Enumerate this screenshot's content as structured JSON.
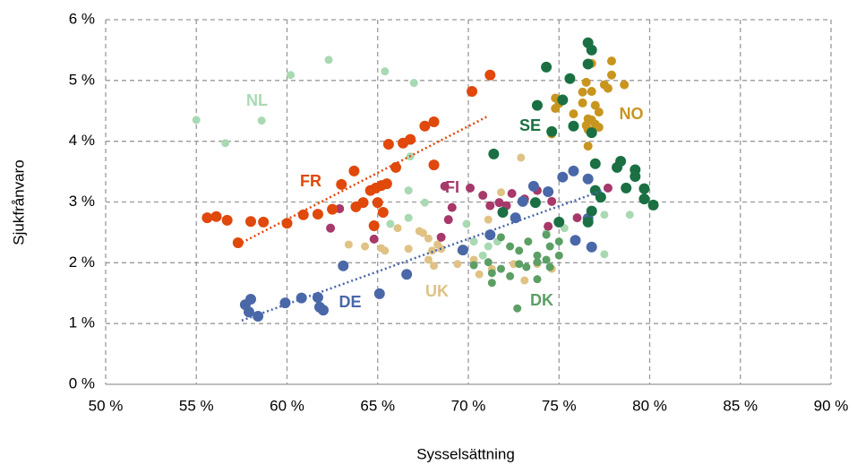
{
  "chart_data": {
    "type": "scatter",
    "x_label": "Sysselsättning",
    "y_label": "Sjukfrånvaro",
    "xlim": [
      50,
      90
    ],
    "ylim": [
      0,
      6
    ],
    "grid": true,
    "xticks": [
      {
        "value": 50,
        "label": "50 %"
      },
      {
        "value": 55,
        "label": "55 %"
      },
      {
        "value": 60,
        "label": "60 %"
      },
      {
        "value": 65,
        "label": "65 %"
      },
      {
        "value": 70,
        "label": "70 %"
      },
      {
        "value": 75,
        "label": "75 %"
      },
      {
        "value": 80,
        "label": "80 %"
      },
      {
        "value": 85,
        "label": "85 %"
      },
      {
        "value": 90,
        "label": "90 %"
      }
    ],
    "yticks": [
      {
        "value": 0,
        "label": "0 %"
      },
      {
        "value": 1,
        "label": "1 %"
      },
      {
        "value": 2,
        "label": "2 %"
      },
      {
        "value": 3,
        "label": "3 %"
      },
      {
        "value": 4,
        "label": "4 %"
      },
      {
        "value": 5,
        "label": "5 %"
      },
      {
        "value": 6,
        "label": "6 %"
      }
    ],
    "series": [
      {
        "name": "NL",
        "color": "#a9d9b2",
        "x": [
          55.0,
          56.6,
          58.6,
          60.2,
          62.3,
          65.4,
          67.0,
          66.8,
          66.7,
          66.7,
          65.7,
          67.6,
          69.9,
          70.3,
          71.1,
          70.8,
          71.6,
          74.3,
          75.3,
          77.5,
          78.9,
          77.5
        ],
        "values": [
          4.35,
          3.97,
          4.34,
          5.09,
          5.34,
          5.15,
          4.96,
          3.75,
          3.19,
          2.74,
          2.64,
          2.99,
          2.64,
          2.35,
          2.27,
          2.12,
          2.35,
          2.49,
          2.57,
          2.79,
          2.79,
          2.14
        ]
      },
      {
        "name": "UK",
        "color": "#dfc284",
        "x": [
          63.4,
          64.3,
          65.2,
          65.4,
          66.1,
          66.7,
          67.3,
          67.5,
          67.8,
          68.0,
          68.3,
          68.5,
          68.1,
          69.4,
          69.6,
          70.3,
          70.6,
          71.3,
          71.8,
          72.9,
          72.5,
          73.1,
          73.8,
          74.6,
          71.1,
          67.8
        ],
        "values": [
          2.3,
          2.27,
          2.24,
          2.2,
          2.57,
          2.23,
          2.52,
          2.49,
          2.05,
          2.2,
          2.3,
          2.23,
          1.95,
          1.98,
          2.2,
          2.05,
          1.81,
          1.9,
          3.16,
          3.73,
          1.98,
          1.71,
          1.98,
          1.9,
          2.71,
          2.4
        ]
      },
      {
        "name": "DK",
        "color": "#5c9f64",
        "x": [
          71.8,
          72.3,
          72.8,
          73.3,
          73.8,
          74.3,
          74.5,
          75.0,
          71.1,
          71.3,
          71.3,
          72.7,
          72.3,
          73.2,
          73.8,
          74.5,
          75.0,
          73.8,
          71.8,
          72.8,
          74.3,
          70.3
        ],
        "values": [
          2.42,
          2.27,
          2.2,
          2.35,
          2.12,
          2.05,
          2.27,
          2.35,
          2.01,
          1.83,
          1.67,
          1.25,
          1.78,
          1.93,
          1.73,
          1.93,
          2.12,
          2.01,
          1.9,
          1.98,
          2.46,
          1.96
        ]
      },
      {
        "name": "FI",
        "color": "#a6386a",
        "x": [
          62.4,
          62.9,
          63.8,
          64.8,
          68.7,
          68.9,
          69.1,
          70.1,
          70.8,
          71.2,
          71.7,
          72.1,
          72.4,
          73.1,
          73.8,
          74.4,
          74.6,
          76.0,
          77.7,
          68.5
        ],
        "values": [
          2.57,
          2.89,
          2.91,
          2.39,
          3.26,
          2.71,
          2.91,
          3.23,
          3.11,
          2.94,
          2.99,
          2.94,
          3.14,
          3.05,
          3.19,
          2.6,
          3.01,
          2.74,
          3.23,
          2.42
        ]
      },
      {
        "name": "NO",
        "color": "#c8951f",
        "x": [
          77.9,
          77.9,
          76.8,
          76.5,
          76.3,
          76.3,
          76.8,
          77.0,
          77.2,
          76.6,
          76.8,
          77.0,
          77.2,
          76.5,
          77.5,
          77.7,
          78.6,
          74.8,
          75.0,
          74.6,
          75.8,
          76.6,
          74.8,
          76.6
        ],
        "values": [
          5.32,
          5.09,
          5.28,
          4.97,
          4.81,
          4.63,
          4.82,
          4.59,
          4.48,
          4.37,
          4.35,
          4.28,
          4.23,
          4.26,
          4.93,
          4.87,
          4.93,
          4.71,
          4.62,
          4.12,
          4.45,
          3.92,
          4.54,
          4.19
        ]
      },
      {
        "name": "DE",
        "color": "#4a68a8",
        "x": [
          57.7,
          58.0,
          57.9,
          58.4,
          59.9,
          60.8,
          61.7,
          61.8,
          62.0,
          63.1,
          65.1,
          66.6,
          69.7,
          71.2,
          72.6,
          73.0,
          73.6,
          74.4,
          75.2,
          75.8,
          76.6,
          76.6,
          76.8,
          75.9
        ],
        "values": [
          1.31,
          1.4,
          1.19,
          1.12,
          1.34,
          1.42,
          1.43,
          1.27,
          1.22,
          1.95,
          1.49,
          1.81,
          2.21,
          2.46,
          2.74,
          3.01,
          3.26,
          3.17,
          3.41,
          3.51,
          3.38,
          2.73,
          2.26,
          2.37
        ],
        "trendline": {
          "x": [
            57.5,
            77.5
          ],
          "y": [
            1.05,
            3.2
          ]
        }
      },
      {
        "name": "FR",
        "color": "#e0480c",
        "x": [
          55.6,
          56.1,
          56.7,
          57.3,
          58.0,
          58.7,
          60.0,
          60.9,
          61.7,
          62.5,
          63.0,
          63.7,
          63.8,
          64.2,
          64.6,
          64.9,
          65.2,
          65.5,
          65.0,
          65.3,
          64.8,
          65.6,
          66.0,
          66.4,
          66.8,
          67.6,
          68.1,
          68.1,
          70.2,
          71.2
        ],
        "values": [
          2.74,
          2.76,
          2.7,
          2.33,
          2.68,
          2.67,
          2.65,
          2.79,
          2.8,
          2.88,
          3.29,
          3.51,
          2.92,
          2.99,
          3.19,
          3.23,
          3.27,
          3.3,
          2.99,
          2.83,
          2.61,
          3.95,
          3.57,
          3.97,
          4.03,
          4.25,
          4.32,
          3.61,
          4.82,
          5.09
        ],
        "trendline": {
          "x": [
            57.3,
            71.0
          ],
          "y": [
            2.3,
            4.4
          ]
        }
      },
      {
        "name": "SE",
        "color": "#1a7043",
        "x": [
          74.3,
          75.2,
          75.6,
          76.6,
          76.8,
          76.6,
          73.8,
          75.8,
          74.6,
          77.0,
          76.8,
          78.4,
          78.2,
          79.2,
          79.2,
          78.7,
          79.7,
          79.7,
          80.2,
          77.0,
          77.3,
          76.8,
          76.6,
          75.0,
          71.4,
          71.9,
          73.7
        ],
        "values": [
          5.22,
          4.68,
          5.03,
          5.62,
          5.5,
          5.27,
          4.59,
          4.25,
          4.16,
          3.63,
          4.14,
          3.67,
          3.57,
          3.53,
          3.42,
          3.23,
          3.22,
          3.05,
          2.95,
          3.19,
          3.08,
          2.85,
          2.67,
          2.67,
          3.79,
          2.83,
          2.99
        ]
      }
    ]
  }
}
